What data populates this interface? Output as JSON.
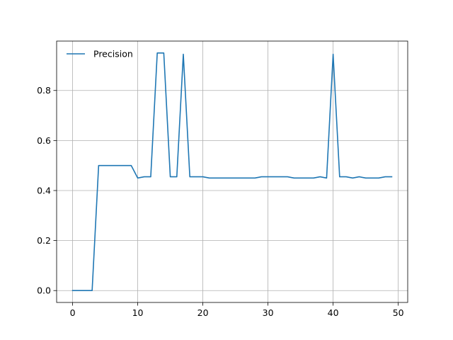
{
  "chart_data": {
    "type": "line",
    "title": "",
    "xlabel": "",
    "ylabel": "",
    "xlim": [
      -2.45,
      51.45
    ],
    "ylim": [
      -0.0475,
      0.9975
    ],
    "xticks": [
      0,
      10,
      20,
      30,
      40,
      50
    ],
    "yticks": [
      0.0,
      0.2,
      0.4,
      0.6,
      0.8
    ],
    "xtick_labels": [
      "0",
      "10",
      "20",
      "30",
      "40",
      "50"
    ],
    "ytick_labels": [
      "0.0",
      "0.2",
      "0.4",
      "0.6",
      "0.8"
    ],
    "grid": true,
    "legend": {
      "position": "top-left"
    },
    "series": [
      {
        "name": "Precision",
        "color": "#1f77b4",
        "x": [
          0,
          1,
          2,
          3,
          4,
          5,
          6,
          7,
          8,
          9,
          10,
          11,
          12,
          13,
          14,
          15,
          16,
          17,
          18,
          19,
          20,
          21,
          22,
          23,
          24,
          25,
          26,
          27,
          28,
          29,
          30,
          31,
          32,
          33,
          34,
          35,
          36,
          37,
          38,
          39,
          40,
          41,
          42,
          43,
          44,
          45,
          46,
          47,
          48,
          49
        ],
        "y": [
          0.0,
          0.0,
          0.0,
          0.0,
          0.5,
          0.5,
          0.5,
          0.5,
          0.5,
          0.5,
          0.45,
          0.455,
          0.455,
          0.95,
          0.95,
          0.455,
          0.455,
          0.945,
          0.455,
          0.455,
          0.455,
          0.45,
          0.45,
          0.45,
          0.45,
          0.45,
          0.45,
          0.45,
          0.45,
          0.455,
          0.455,
          0.455,
          0.455,
          0.455,
          0.45,
          0.45,
          0.45,
          0.45,
          0.455,
          0.45,
          0.945,
          0.455,
          0.455,
          0.45,
          0.455,
          0.45,
          0.45,
          0.45,
          0.455,
          0.455
        ]
      }
    ]
  }
}
